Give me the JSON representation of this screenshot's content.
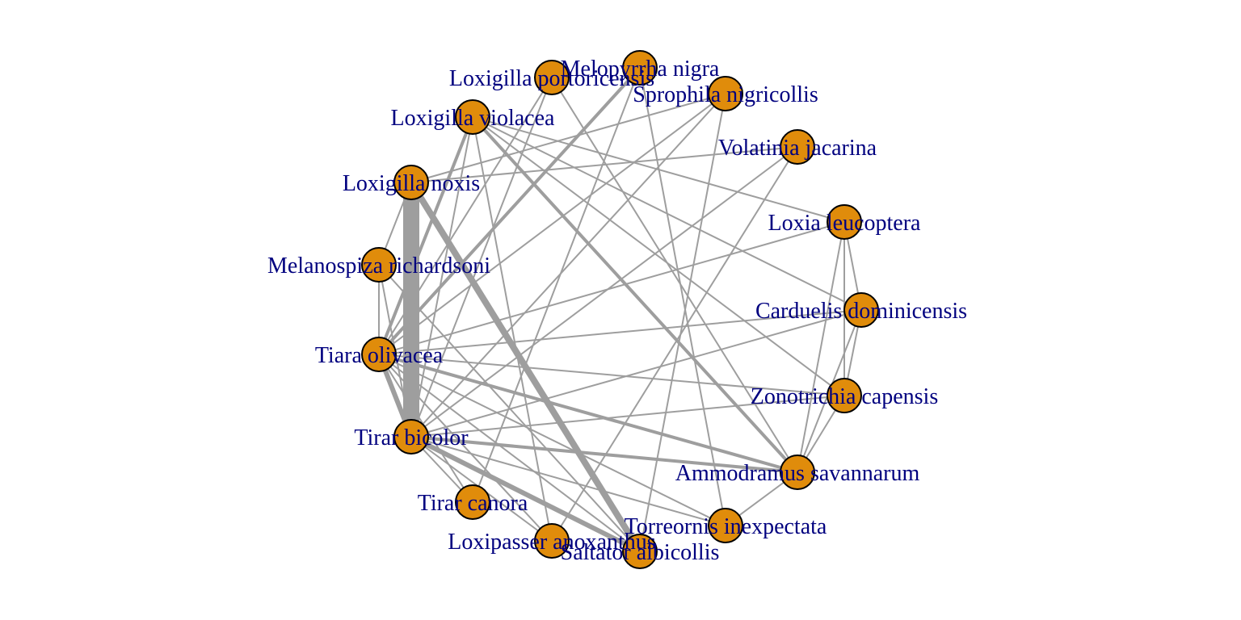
{
  "graph": {
    "colors": {
      "node_fill": "#e08c0b",
      "node_border": "#000000",
      "edge": "#9e9e9e",
      "label": "#00007f",
      "background": "#ffffff"
    },
    "nodes": [
      {
        "id": "melopyrrha",
        "label": "Melopyrrha nigra"
      },
      {
        "id": "sprophila",
        "label": "Sprophila nigricollis"
      },
      {
        "id": "volatinia",
        "label": "Volatinia jacarina"
      },
      {
        "id": "loxia",
        "label": "Loxia leucoptera"
      },
      {
        "id": "carduelis",
        "label": "Carduelis dominicensis"
      },
      {
        "id": "zonotrichia",
        "label": "Zonotrichia capensis"
      },
      {
        "id": "ammodramus",
        "label": "Ammodramus savannarum"
      },
      {
        "id": "torreornis",
        "label": "Torreornis inexpectata"
      },
      {
        "id": "saltator",
        "label": "Saltator albicollis"
      },
      {
        "id": "loxipasser",
        "label": "Loxipasser anoxanthus"
      },
      {
        "id": "tirar_canora",
        "label": "Tirar canora"
      },
      {
        "id": "tirar_bicolor",
        "label": "Tirar bicolor"
      },
      {
        "id": "tiara",
        "label": "Tiara olivacea"
      },
      {
        "id": "melanospiza",
        "label": "Melanospiza richardsoni"
      },
      {
        "id": "lox_noxis",
        "label": "Loxigilla noxis"
      },
      {
        "id": "lox_violacea",
        "label": "Loxigilla violacea"
      },
      {
        "id": "lox_porto",
        "label": "Loxigilla portoricensis"
      }
    ],
    "edges": [
      {
        "source": "lox_noxis",
        "target": "tirar_bicolor",
        "weight": 10
      },
      {
        "source": "lox_noxis",
        "target": "saltator",
        "weight": 4
      },
      {
        "source": "lox_violacea",
        "target": "ammodramus",
        "weight": 2
      },
      {
        "source": "lox_violacea",
        "target": "tiara",
        "weight": 2
      },
      {
        "source": "lox_violacea",
        "target": "tirar_bicolor",
        "weight": 1
      },
      {
        "source": "lox_violacea",
        "target": "loxia",
        "weight": 1
      },
      {
        "source": "lox_violacea",
        "target": "zonotrichia",
        "weight": 1
      },
      {
        "source": "lox_violacea",
        "target": "loxipasser",
        "weight": 1
      },
      {
        "source": "lox_violacea",
        "target": "carduelis",
        "weight": 1
      },
      {
        "source": "tiara",
        "target": "ammodramus",
        "weight": 2
      },
      {
        "source": "tiara",
        "target": "melopyrrha",
        "weight": 2
      },
      {
        "source": "tiara",
        "target": "carduelis",
        "weight": 1
      },
      {
        "source": "tiara",
        "target": "loxia",
        "weight": 1
      },
      {
        "source": "tiara",
        "target": "zonotrichia",
        "weight": 1
      },
      {
        "source": "tiara",
        "target": "torreornis",
        "weight": 1
      },
      {
        "source": "tiara",
        "target": "saltator",
        "weight": 1
      },
      {
        "source": "tiara",
        "target": "tirar_bicolor",
        "weight": 3
      },
      {
        "source": "tirar_bicolor",
        "target": "ammodramus",
        "weight": 2
      },
      {
        "source": "tirar_bicolor",
        "target": "saltator",
        "weight": 3
      },
      {
        "source": "tirar_bicolor",
        "target": "loxipasser",
        "weight": 1
      },
      {
        "source": "tirar_bicolor",
        "target": "zonotrichia",
        "weight": 1
      },
      {
        "source": "tirar_bicolor",
        "target": "carduelis",
        "weight": 1
      },
      {
        "source": "tirar_bicolor",
        "target": "volatinia",
        "weight": 1
      },
      {
        "source": "tirar_bicolor",
        "target": "sprophila",
        "weight": 1
      },
      {
        "source": "tirar_bicolor",
        "target": "lox_porto",
        "weight": 1
      },
      {
        "source": "tirar_bicolor",
        "target": "torreornis",
        "weight": 1
      },
      {
        "source": "tirar_bicolor",
        "target": "tirar_canora",
        "weight": 1
      },
      {
        "source": "tirar_bicolor",
        "target": "melanospiza",
        "weight": 1
      },
      {
        "source": "lox_noxis",
        "target": "volatinia",
        "weight": 1
      },
      {
        "source": "lox_noxis",
        "target": "sprophila",
        "weight": 1
      },
      {
        "source": "lox_porto",
        "target": "ammodramus",
        "weight": 1
      },
      {
        "source": "lox_porto",
        "target": "tiara",
        "weight": 1
      },
      {
        "source": "melopyrrha",
        "target": "torreornis",
        "weight": 1
      },
      {
        "source": "melopyrrha",
        "target": "tirar_canora",
        "weight": 1
      },
      {
        "source": "sprophila",
        "target": "saltator",
        "weight": 1
      },
      {
        "source": "sprophila",
        "target": "tiara",
        "weight": 1
      },
      {
        "source": "volatinia",
        "target": "loxipasser",
        "weight": 1
      },
      {
        "source": "loxia",
        "target": "ammodramus",
        "weight": 1
      },
      {
        "source": "loxia",
        "target": "zonotrichia",
        "weight": 1
      },
      {
        "source": "loxia",
        "target": "carduelis",
        "weight": 1
      },
      {
        "source": "carduelis",
        "target": "ammodramus",
        "weight": 1
      },
      {
        "source": "carduelis",
        "target": "zonotrichia",
        "weight": 1
      },
      {
        "source": "zonotrichia",
        "target": "ammodramus",
        "weight": 1
      },
      {
        "source": "ammodramus",
        "target": "torreornis",
        "weight": 1
      },
      {
        "source": "melanospiza",
        "target": "tiara",
        "weight": 1
      },
      {
        "source": "melanospiza",
        "target": "saltator",
        "weight": 1
      },
      {
        "source": "tiara",
        "target": "loxipasser",
        "weight": 1
      },
      {
        "source": "tiara",
        "target": "tirar_canora",
        "weight": 1
      },
      {
        "source": "lox_noxis",
        "target": "melanospiza",
        "weight": 1
      }
    ]
  }
}
